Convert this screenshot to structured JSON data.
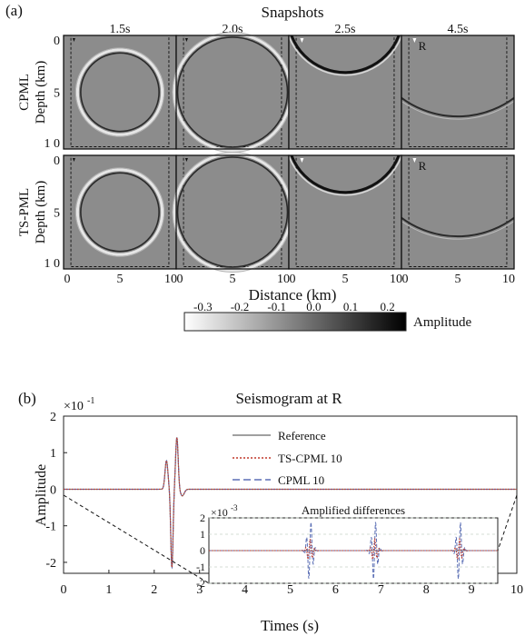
{
  "chart_data": [
    {
      "type": "heatmap",
      "panel_label": "(a)",
      "title": "Snapshots",
      "times": [
        "1.5s",
        "2.0s",
        "2.5s",
        "4.5s"
      ],
      "rows": [
        "CPML",
        "TS-PML"
      ],
      "ylabel": "Depth  (km)",
      "xlabel": "Distance  (km)",
      "x_ticks": [
        "0",
        "5",
        "10"
      ],
      "y_ticks": [
        "0",
        "5",
        "1 0"
      ],
      "receiver_label": "R",
      "colorbar": {
        "label": "Amplitude",
        "ticks": [
          "-0.3",
          "-0.2",
          "-0.1",
          "0.0",
          "0.1",
          "0.2"
        ],
        "range": [
          -0.35,
          0.25
        ],
        "colors": [
          "#ffffff",
          "#000000"
        ]
      }
    },
    {
      "type": "line",
      "panel_label": "(b)",
      "title": "Seismogram at R",
      "xlabel": "Times (s)",
      "ylabel": "Amplitude",
      "xlim": [
        0,
        10
      ],
      "ylim": [
        -2.3,
        2
      ],
      "x_ticks": [
        "0",
        "1",
        "2",
        "3",
        "4",
        "5",
        "6",
        "7",
        "8",
        "9",
        "10"
      ],
      "y_ticks": [
        "2",
        "1",
        "0",
        "-1",
        "-2"
      ],
      "y_exponent": "×10",
      "y_exponent_power": "-1",
      "legend": [
        "Reference",
        "TS-CPML 10",
        "CPML 10"
      ],
      "series_colors": [
        "#808080",
        "#c0392b",
        "#5b6fb5"
      ],
      "trace": {
        "pulses": [
          {
            "t": 2.27,
            "amp": 0.78,
            "w": 0.045
          },
          {
            "t": 2.39,
            "amp": -2.15,
            "w": 0.035
          },
          {
            "t": 2.5,
            "amp": 1.42,
            "w": 0.04
          },
          {
            "t": 2.62,
            "amp": -0.18,
            "w": 0.06
          }
        ]
      },
      "inset": {
        "title": "Amplified differences",
        "y_exponent": "×10",
        "y_exponent_power": "-3",
        "y_ticks": [
          "2",
          "1",
          "0",
          "-1",
          "-2"
        ],
        "ylim": [
          -2,
          2
        ],
        "xlim": [
          2.35,
          9.5
        ],
        "bursts_t": [
          4.85,
          6.45,
          8.55
        ]
      }
    }
  ]
}
